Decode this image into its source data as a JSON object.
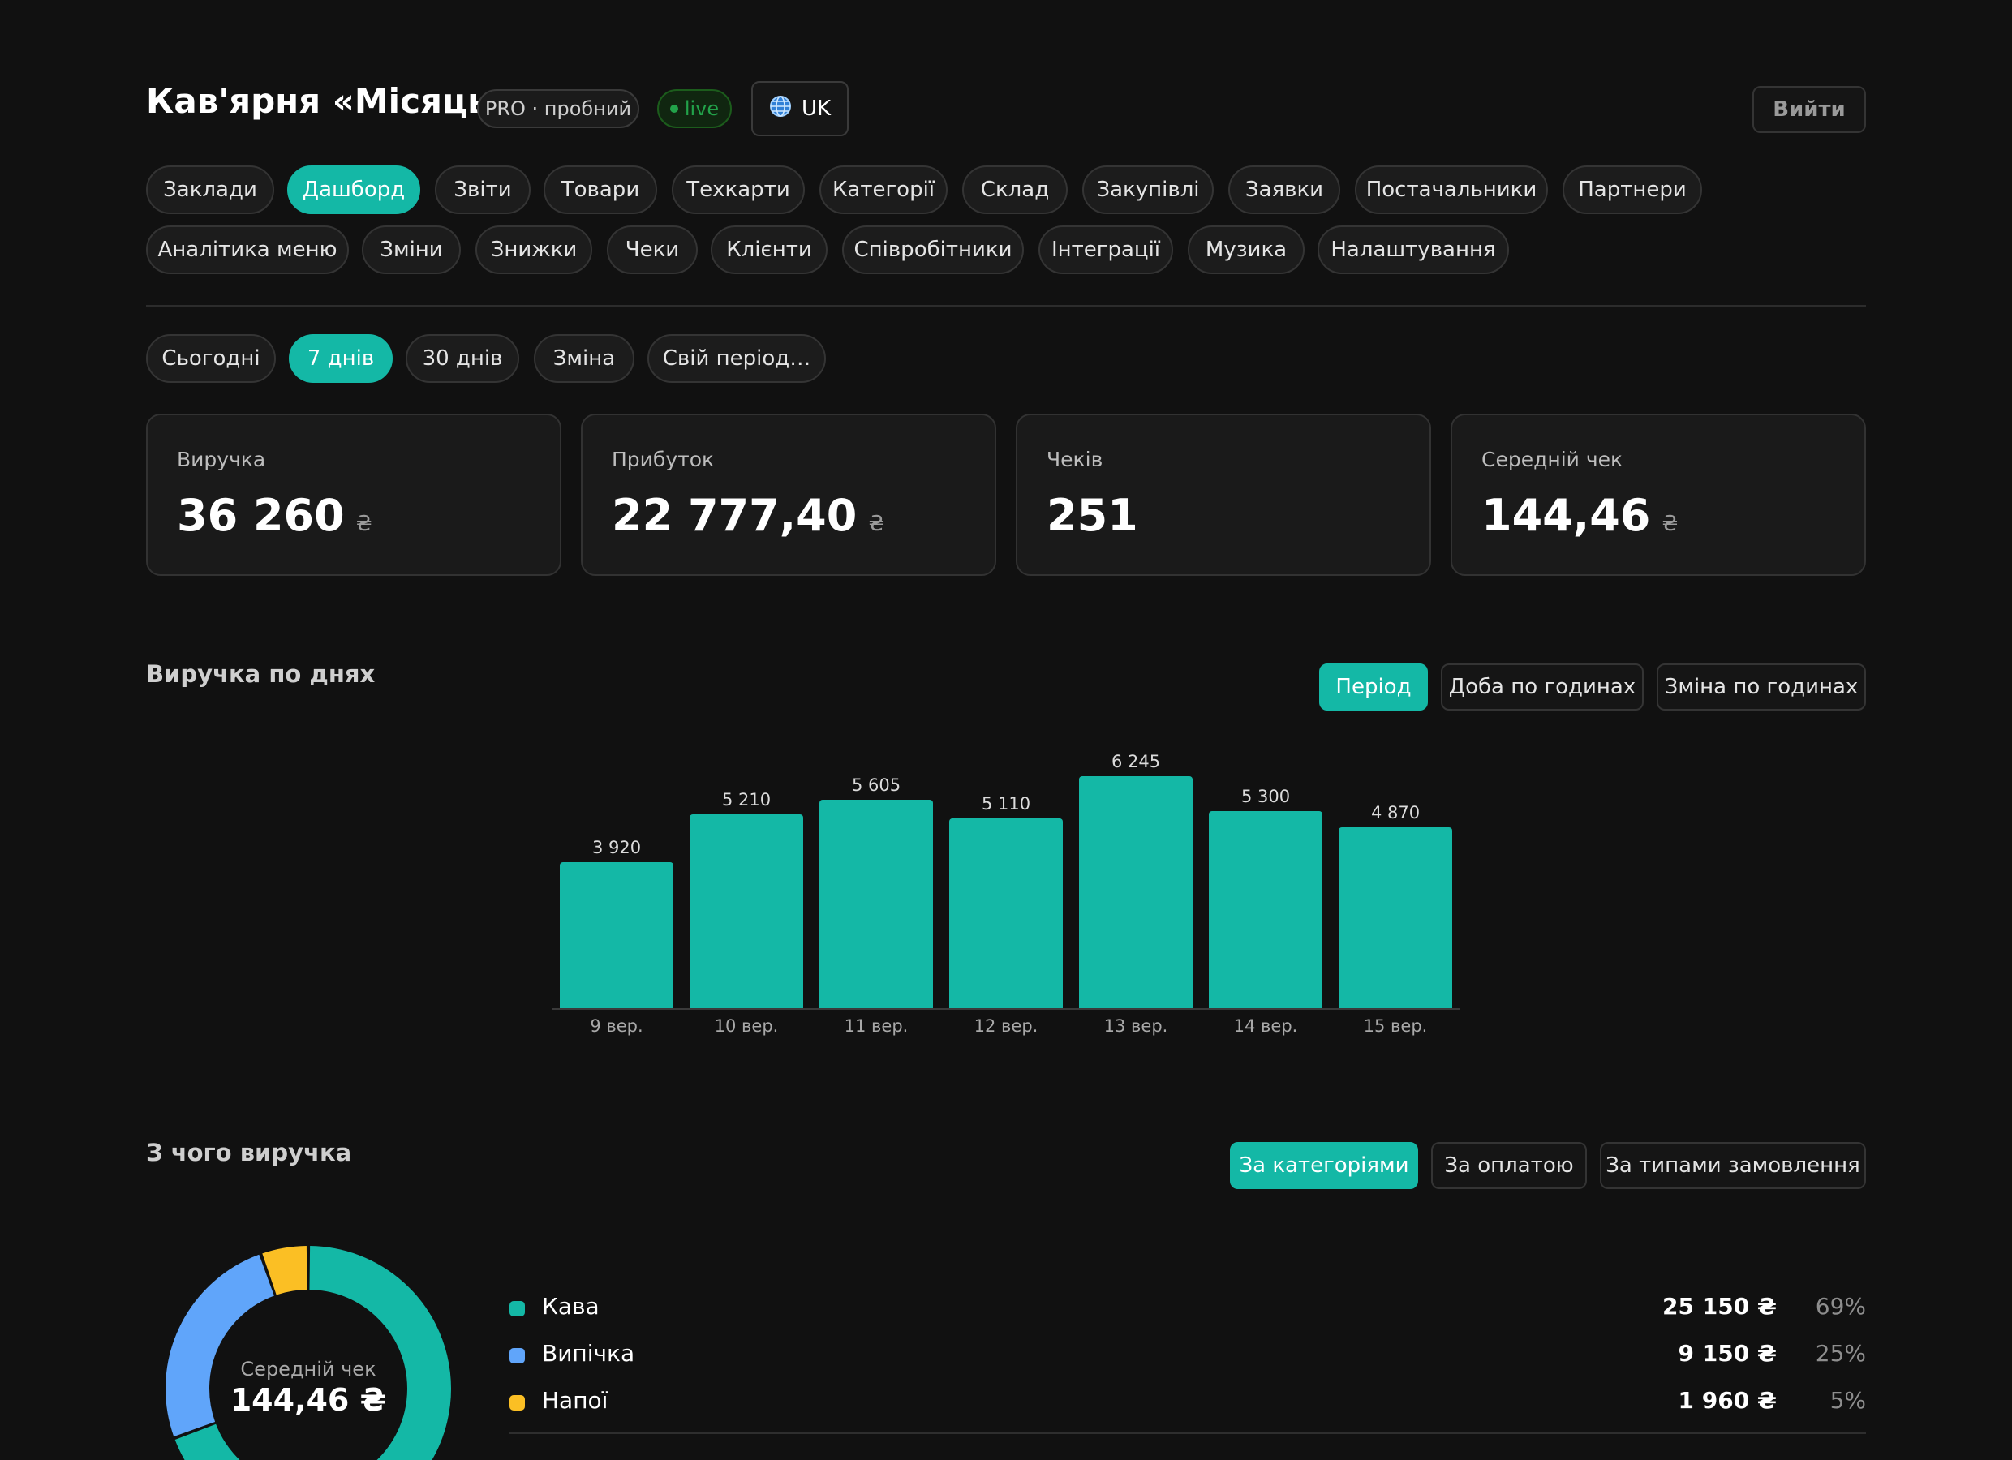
{
  "header": {
    "title": "Кав'ярня «Місяць»",
    "plan_badge": "PRO · пробний",
    "live_badge": "live",
    "lang_label": "UK",
    "logout_label": "Вийти"
  },
  "nav": {
    "row1": [
      "Заклади",
      "Дашборд",
      "Звіти",
      "Товари",
      "Техкарти",
      "Категорії",
      "Склад",
      "Закупівлі",
      "Заявки",
      "Постачальники",
      "Партнери"
    ],
    "row2": [
      "Аналітика меню",
      "Зміни",
      "Знижки",
      "Чеки",
      "Клієнти",
      "Співробітники",
      "Інтеграції",
      "Музика",
      "Налаштування"
    ],
    "active": "Дашборд"
  },
  "period": {
    "options": [
      "Сьогодні",
      "7 днів",
      "30 днів",
      "Зміна",
      "Свій період…"
    ],
    "active": "7 днів"
  },
  "kpi": [
    {
      "label": "Виручка",
      "value": "36 260",
      "currency": "₴"
    },
    {
      "label": "Прибуток",
      "value": "22 777,40",
      "currency": "₴"
    },
    {
      "label": "Чеків",
      "value": "251",
      "currency": ""
    },
    {
      "label": "Середній чек",
      "value": "144,46",
      "currency": "₴"
    }
  ],
  "revenue_section": {
    "title": "Виручка по днях",
    "toggles": [
      "Період",
      "Доба по годинах",
      "Зміна по годинах"
    ],
    "active": "Період"
  },
  "chart_data": {
    "type": "bar",
    "categories": [
      "9 вер.",
      "10 вер.",
      "11 вер.",
      "12 вер.",
      "13 вер.",
      "14 вер.",
      "15 вер."
    ],
    "values": [
      3920,
      5210,
      5605,
      5110,
      6245,
      5300,
      4870
    ],
    "value_labels": [
      "3 920",
      "5 210",
      "5 605",
      "5 110",
      "6 245",
      "5 300",
      "4 870"
    ],
    "title": "Виручка по днях",
    "ylim": [
      0,
      6245
    ],
    "grid": false,
    "color": "#14b8a6"
  },
  "breakdown_section": {
    "title": "З чого виручка",
    "toggles": [
      "За категоріями",
      "За оплатою",
      "За типами замовлення"
    ],
    "active": "За категоріями",
    "donut_label": "Середній чек",
    "donut_value": "144,46 ₴",
    "items": [
      {
        "name": "Кава",
        "amount": "25 150 ₴",
        "pct": "69%",
        "share": 69.36,
        "color": "#14b8a6"
      },
      {
        "name": "Випічка",
        "amount": "9 150 ₴",
        "pct": "25%",
        "share": 25.23,
        "color": "#60a5fa"
      },
      {
        "name": "Напої",
        "amount": "1 960 ₴",
        "pct": "5%",
        "share": 5.41,
        "color": "#fbbf24"
      }
    ]
  }
}
